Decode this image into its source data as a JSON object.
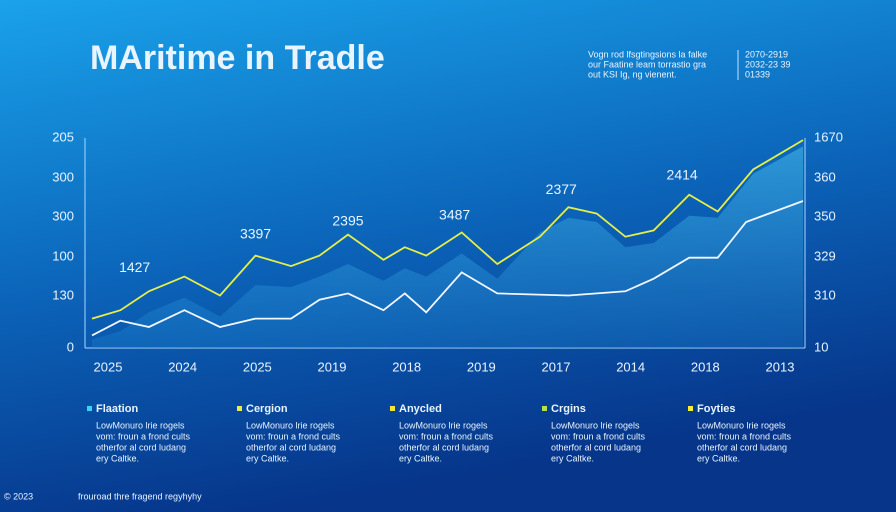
{
  "chart_data": {
    "type": "line",
    "title": "MAritime in Tradle",
    "note_lines": [
      "Vogn rod lfsgtingsions la falke",
      "our Faatine leam torrastio gra",
      "out KSI Ig, ng vienent."
    ],
    "range_lines": [
      "2070-2919",
      "2032-23 39",
      "01339"
    ],
    "y_axis_labels": [
      "205",
      "300",
      "300",
      "100",
      "130",
      "0"
    ],
    "y2_axis_labels": [
      "1670",
      "360",
      "350",
      "329",
      "310",
      "10"
    ],
    "categories": [
      "2025",
      "2024",
      "2025",
      "2019",
      "2018",
      "2019",
      "2017",
      "2014",
      "2018",
      "2013"
    ],
    "xlim": [
      0,
      100
    ],
    "ylim": [
      0,
      100
    ],
    "series": [
      {
        "color": "#5fc8ef",
        "fill": true,
        "x": [
          0,
          4,
          8,
          13,
          18,
          23,
          28,
          32,
          36,
          41,
          44,
          47,
          52,
          57,
          63,
          67,
          71,
          75,
          79,
          84,
          88,
          93,
          100
        ],
        "values": [
          4,
          8,
          17,
          24,
          15,
          30,
          29,
          34,
          40,
          32,
          38,
          34,
          45,
          33,
          55,
          62,
          60,
          48,
          50,
          63,
          62,
          83,
          96
        ]
      },
      {
        "color": "#e6ee4a",
        "x": [
          0,
          4,
          8,
          13,
          18,
          23,
          28,
          32,
          36,
          41,
          44,
          47,
          52,
          57,
          63,
          67,
          71,
          75,
          79,
          84,
          88,
          93,
          100
        ],
        "values": [
          14,
          18,
          27,
          34,
          25,
          44,
          39,
          44,
          54,
          42,
          48,
          44,
          55,
          40,
          53,
          67,
          64,
          53,
          56,
          73,
          65,
          85,
          99
        ]
      },
      {
        "color": "#f2f6ff",
        "x": [
          0,
          4,
          8,
          13,
          18,
          23,
          28,
          32,
          36,
          41,
          44,
          47,
          52,
          57,
          67,
          75,
          79,
          84,
          88,
          92,
          100
        ],
        "values": [
          6,
          13,
          10,
          18,
          10,
          14,
          14,
          23,
          26,
          18,
          26,
          17,
          36,
          26,
          25,
          27,
          33,
          43,
          43,
          60,
          70
        ]
      }
    ],
    "annotations": [
      {
        "text": "1427",
        "x": 6,
        "y": 38
      },
      {
        "text": "3397",
        "x": 23,
        "y": 54
      },
      {
        "text": "2395",
        "x": 36,
        "y": 60
      },
      {
        "text": "3487",
        "x": 51,
        "y": 63
      },
      {
        "text": "2377",
        "x": 66,
        "y": 75
      },
      {
        "text": "2414",
        "x": 83,
        "y": 82
      }
    ],
    "legend": [
      {
        "name": "Flaation",
        "color": "#3fd0f5",
        "lines": [
          "LowMonuro lrie rogels",
          "vom: froun a frond cults",
          "otherfor al cord ludang",
          "ery Caltke."
        ]
      },
      {
        "name": "Cergion",
        "color": "#e6ee4a",
        "lines": [
          "LowMonuro lrie rogels",
          "vom: froun a frond cults",
          "otherfor al cord ludang",
          "ery Caltke."
        ]
      },
      {
        "name": "Anycled",
        "color": "#f0e63a",
        "lines": [
          "LowMonuro lrie rogels",
          "vom: froun a frond cults",
          "otherfor al cord ludang",
          "ery Caltke."
        ]
      },
      {
        "name": "Crgins",
        "color": "#b6e04a",
        "lines": [
          "LowMonuro lrie rogels",
          "vom: froun a frond cults",
          "otherfor al cord ludang",
          "ery Caltke."
        ]
      },
      {
        "name": "Foyties",
        "color": "#f2ee3a",
        "lines": [
          "LowMonuro lrie rogels",
          "vom: froun a frond cults",
          "otherfor al cord ludang",
          "ery Caltke."
        ]
      }
    ],
    "footer": "© 2023",
    "footer_note": "frouroad thre fragend regyhyhy"
  }
}
